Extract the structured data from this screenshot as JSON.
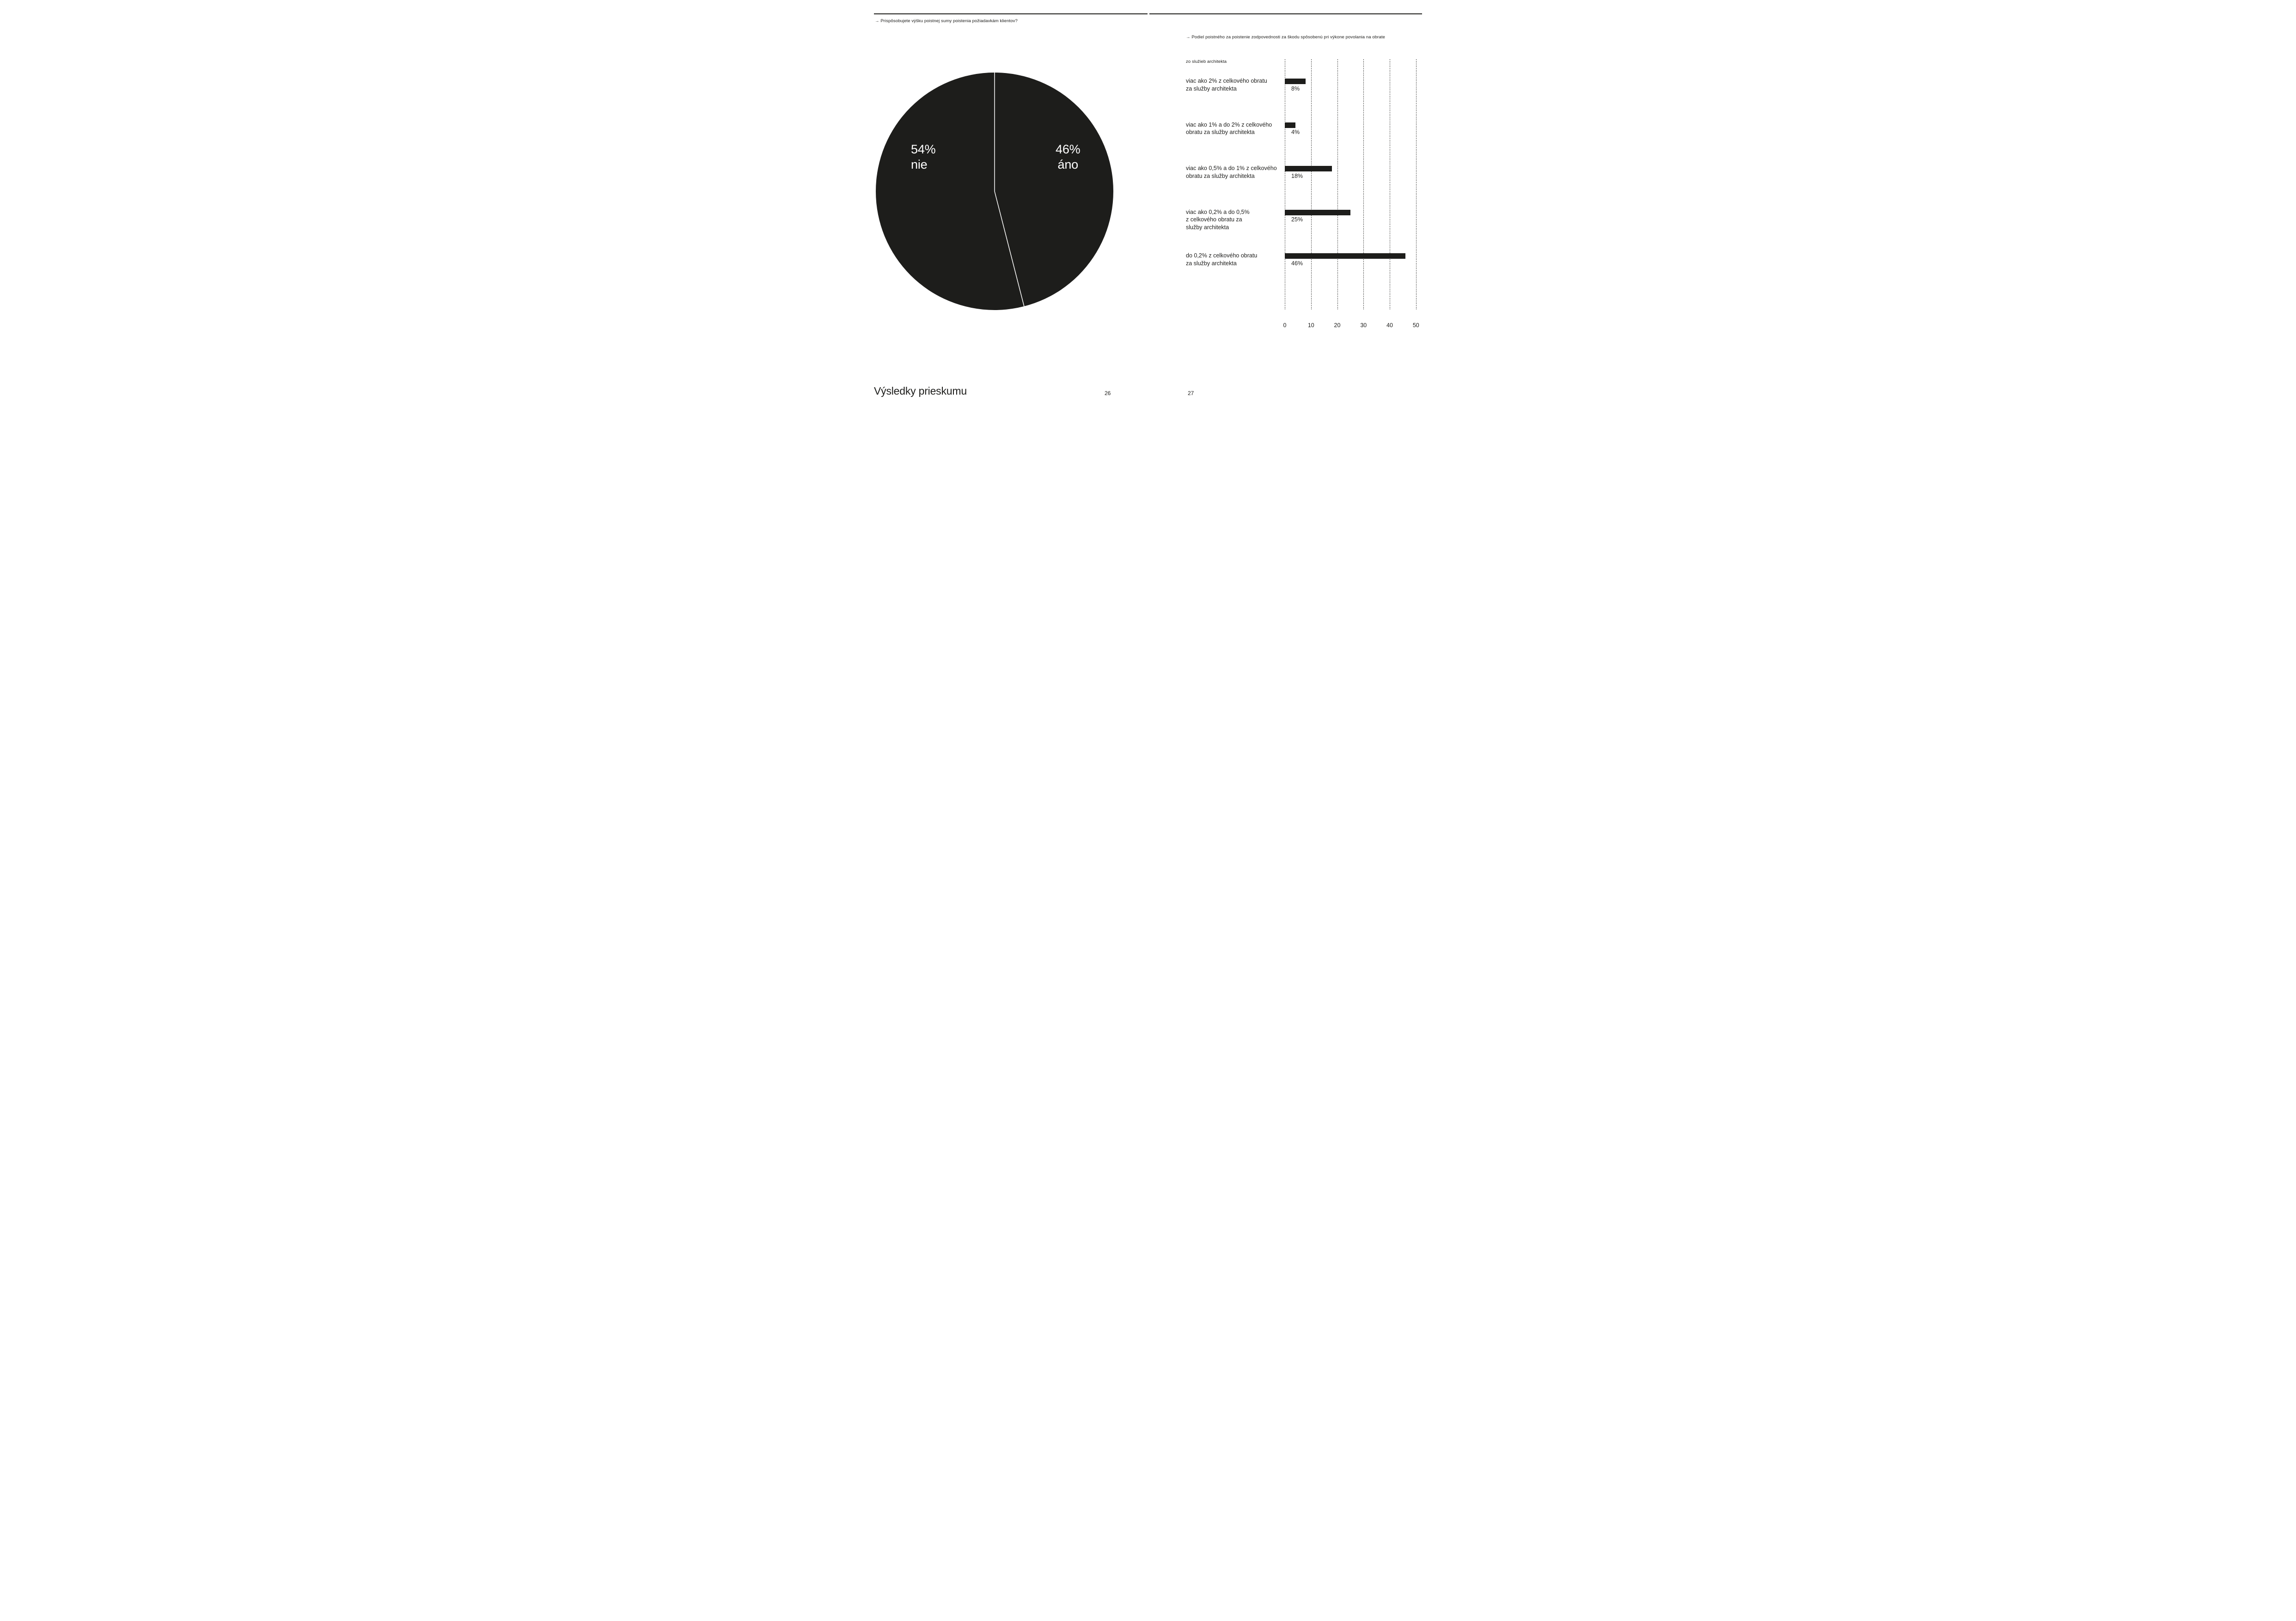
{
  "page": {
    "header_left": "→ Prispôsobujete výšku poistnej sumy poistenia požiadavkám klientov?",
    "header_right_line1": "→ Podiel poistného za poistenie zodpovednosti za škodu spôsobenú pri výkone povolania na obrate",
    "header_right_line2": "zo služieb architekta",
    "footer_title": "Výsledky prieskumu",
    "page_number_left": "26",
    "page_number_right": "27"
  },
  "colors": {
    "ink": "#1d1d1b",
    "background": "#ffffff",
    "pie_divider": "#ffffff"
  },
  "chart_data": [
    {
      "type": "pie",
      "title": "Prispôsobujete výšku poistnej sumy poistenia požiadavkám klientov?",
      "unit": "%",
      "color": "#1d1d1b",
      "label_color": "#ffffff",
      "start_angle_deg": 0,
      "slices": [
        {
          "label": "áno",
          "value": 46,
          "side": "right"
        },
        {
          "label": "nie",
          "value": 54,
          "side": "left"
        }
      ]
    },
    {
      "type": "bar",
      "orientation": "horizontal",
      "title": "Podiel poistného za poistenie zodpovednosti za škodu spôsobenú pri výkone povolania na obrate zo služieb architekta",
      "unit": "%",
      "bar_color": "#1d1d1b",
      "grid": "vertical dashed",
      "xlim": [
        0,
        50
      ],
      "xticks": [
        0,
        10,
        20,
        30,
        40,
        50
      ],
      "categories": [
        [
          "viac ako 2% z celkového obratu",
          "za služby architekta"
        ],
        [
          "viac ako 1% a do 2% z celkového",
          "obratu za služby architekta"
        ],
        [
          "viac ako 0,5% a do 1% z celkového",
          "obratu za služby architekta"
        ],
        [
          "viac ako 0,2% a do 0,5%",
          "z celkového obratu za",
          "služby architekta"
        ],
        [
          "do 0,2% z celkového obratu",
          "za služby architekta"
        ]
      ],
      "values": [
        8,
        4,
        18,
        25,
        46
      ]
    }
  ]
}
